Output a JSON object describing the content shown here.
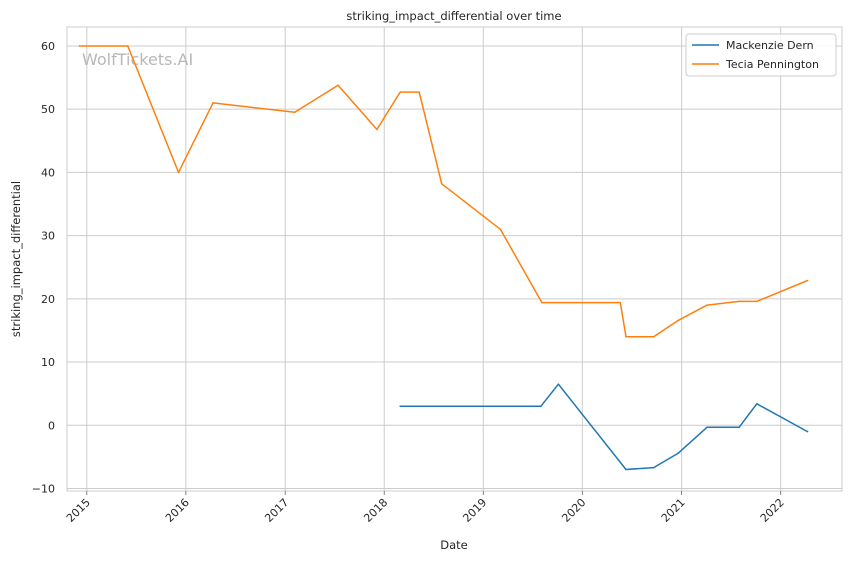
{
  "chart_data": {
    "type": "line",
    "title": "striking_impact_differential over time",
    "xlabel": "Date",
    "ylabel": "striking_impact_differential",
    "watermark": "WolfTickets.AI",
    "x_ticks": [
      "2015",
      "2016",
      "2017",
      "2018",
      "2019",
      "2020",
      "2021",
      "2022"
    ],
    "y_ticks": [
      -10,
      0,
      10,
      20,
      30,
      40,
      50,
      60
    ],
    "xlim": [
      "2014-10-20",
      "2022-08-15"
    ],
    "ylim": [
      -10.4,
      63
    ],
    "grid": true,
    "legend_position": "top-right",
    "series": [
      {
        "name": "Mackenzie Dern",
        "color": "#1f77b4",
        "points": [
          {
            "x": "2018-03-01",
            "y": 3.0
          },
          {
            "x": "2019-08-01",
            "y": 3.0
          },
          {
            "x": "2019-10-05",
            "y": 6.5
          },
          {
            "x": "2020-06-10",
            "y": -7.0
          },
          {
            "x": "2020-09-20",
            "y": -6.7
          },
          {
            "x": "2020-12-20",
            "y": -4.4
          },
          {
            "x": "2021-04-05",
            "y": -0.3
          },
          {
            "x": "2021-08-01",
            "y": -0.3
          },
          {
            "x": "2021-10-05",
            "y": 3.4
          },
          {
            "x": "2022-04-10",
            "y": -1.0
          }
        ]
      },
      {
        "name": "Tecia Pennington",
        "color": "#ff7f0e",
        "points": [
          {
            "x": "2014-12-05",
            "y": 60.0
          },
          {
            "x": "2015-06-01",
            "y": 60.0
          },
          {
            "x": "2015-12-05",
            "y": 40.0
          },
          {
            "x": "2016-04-10",
            "y": 51.0
          },
          {
            "x": "2017-02-05",
            "y": 49.5
          },
          {
            "x": "2017-07-15",
            "y": 53.8
          },
          {
            "x": "2017-12-05",
            "y": 46.8
          },
          {
            "x": "2018-03-01",
            "y": 52.7
          },
          {
            "x": "2018-05-10",
            "y": 52.7
          },
          {
            "x": "2018-08-01",
            "y": 38.2
          },
          {
            "x": "2019-03-05",
            "y": 31.0
          },
          {
            "x": "2019-08-05",
            "y": 19.4
          },
          {
            "x": "2020-05-20",
            "y": 19.4
          },
          {
            "x": "2020-06-10",
            "y": 14.0
          },
          {
            "x": "2020-09-20",
            "y": 14.0
          },
          {
            "x": "2020-12-20",
            "y": 16.6
          },
          {
            "x": "2021-04-05",
            "y": 19.0
          },
          {
            "x": "2021-08-01",
            "y": 19.6
          },
          {
            "x": "2021-10-05",
            "y": 19.6
          },
          {
            "x": "2022-04-10",
            "y": 22.9
          }
        ]
      }
    ]
  }
}
